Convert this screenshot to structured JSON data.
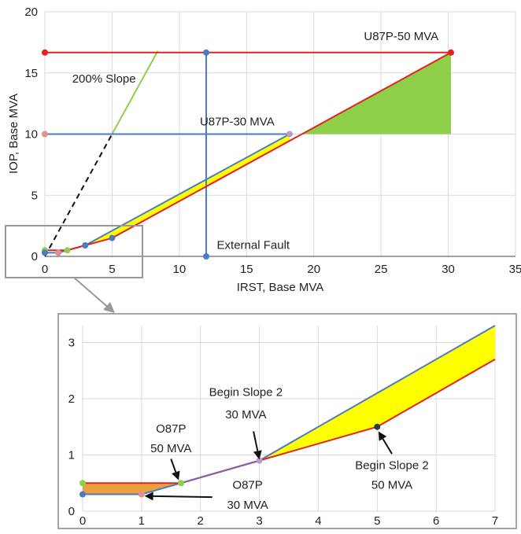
{
  "chart_data": [
    {
      "type": "line",
      "xlabel": "IRST, Base MVA",
      "ylabel": "IOP, Base MVA",
      "xlim": [
        0,
        35
      ],
      "ylim": [
        0,
        20
      ],
      "xticks": [
        "0",
        "5",
        "10",
        "15",
        "20",
        "25",
        "30",
        "35"
      ],
      "yticks": [
        "0",
        "5",
        "10",
        "15",
        "20"
      ],
      "grid": true,
      "series": [
        {
          "key": "red_30",
          "color": "#e8201e",
          "x": [
            0,
            1,
            1.67,
            5,
            30.2
          ],
          "y": [
            0.5,
            0.5,
            0.5,
            1.5,
            16.67
          ]
        },
        {
          "key": "blue_30",
          "color": "#4a7bc4",
          "x": [
            0,
            1,
            3,
            18.2
          ],
          "y": [
            0.3,
            0.3,
            0.9,
            10
          ]
        },
        {
          "key": "u50_line",
          "color": "#e8201e",
          "x": [
            0,
            30.2
          ],
          "y": [
            16.67,
            16.67
          ]
        },
        {
          "key": "u30_line",
          "color": "#4a7bc4",
          "x": [
            0,
            18.2
          ],
          "y": [
            10,
            10
          ]
        },
        {
          "key": "ext_fault",
          "color": "#4a7bc4",
          "x": [
            12,
            12
          ],
          "y": [
            0,
            16.67
          ]
        },
        {
          "key": "slope200",
          "color": "#8ecf4a",
          "x": [
            5,
            8.4
          ],
          "y": [
            10,
            16.8
          ]
        },
        {
          "key": "slope_dashed",
          "color": "#111111",
          "x": [
            0,
            5
          ],
          "y": [
            0,
            10
          ]
        }
      ],
      "fills": [
        {
          "key": "yellow",
          "color": "#ffff00",
          "upper": "blue",
          "lower": "red",
          "x_range": [
            3,
            18.2
          ]
        },
        {
          "key": "green",
          "color": "#8ecf4a",
          "polygon_x": [
            19.2,
            30.2,
            30.2
          ],
          "polygon_y": [
            10,
            10,
            16.67
          ]
        }
      ],
      "points": [
        {
          "x": 0,
          "y": 16.67,
          "color": "#e8201e"
        },
        {
          "x": 30.2,
          "y": 16.67,
          "color": "#e8201e"
        },
        {
          "x": 12,
          "y": 16.67,
          "color": "#4a7bc4"
        },
        {
          "x": 12,
          "y": 0,
          "color": "#4a7bc4"
        },
        {
          "x": 0,
          "y": 10,
          "color": "#e09090"
        },
        {
          "x": 18.2,
          "y": 10,
          "color": "#b89ad0"
        },
        {
          "x": 0,
          "y": 0.5,
          "color": "#8ecf4a"
        },
        {
          "x": 0,
          "y": 0.3,
          "color": "#4a7bc4"
        },
        {
          "x": 1,
          "y": 0.3,
          "color": "#e09090"
        },
        {
          "x": 1.67,
          "y": 0.5,
          "color": "#8ecf4a"
        },
        {
          "x": 3,
          "y": 0.9,
          "color": "#4a7bc4"
        },
        {
          "x": 5,
          "y": 1.5,
          "color": "#4a7bc4"
        }
      ],
      "annotations": [
        {
          "text": "U87P-50 MVA",
          "x": 26.5,
          "y": 17.7
        },
        {
          "text": "200% Slope",
          "x": 4.4,
          "y": 14.2
        },
        {
          "text": "U87P-30 MVA",
          "x": 14.3,
          "y": 10.7
        },
        {
          "text": "External Fault",
          "x": 15.5,
          "y": 0.6
        }
      ]
    },
    {
      "type": "line",
      "xlim": [
        0,
        7
      ],
      "ylim": [
        0,
        3.3
      ],
      "xticks": [
        "0",
        "1",
        "2",
        "3",
        "4",
        "5",
        "6",
        "7"
      ],
      "yticks": [
        "0",
        "1",
        "2",
        "3"
      ],
      "grid": true,
      "series": [
        {
          "key": "red_50",
          "color": "#e8201e",
          "x": [
            0,
            1,
            1.67,
            3,
            5,
            7
          ],
          "y": [
            0.5,
            0.5,
            0.5,
            0.9,
            1.5,
            2.7
          ]
        },
        {
          "key": "blue_30",
          "color": "#4a7bc4",
          "x": [
            0,
            1,
            1.67,
            3,
            7
          ],
          "y": [
            0.3,
            0.3,
            0.5,
            0.9,
            3.3
          ]
        },
        {
          "key": "purple_ov",
          "color": "#8a5fb0",
          "x": [
            1.67,
            3
          ],
          "y": [
            0.5,
            0.9
          ]
        }
      ],
      "fills": [
        {
          "key": "orange",
          "color": "#e8a040",
          "polygon_x": [
            0,
            1.67,
            1,
            0
          ],
          "polygon_y": [
            0.5,
            0.5,
            0.3,
            0.3
          ]
        },
        {
          "key": "yellow",
          "color": "#ffff00",
          "polygon_x": [
            3,
            7,
            7,
            5
          ],
          "polygon_y": [
            0.9,
            3.3,
            2.7,
            1.5
          ]
        }
      ],
      "points": [
        {
          "x": 0,
          "y": 0.5,
          "color": "#8ecf4a"
        },
        {
          "x": 0,
          "y": 0.3,
          "color": "#4a7bc4"
        },
        {
          "x": 1,
          "y": 0.3,
          "color": "#e09090"
        },
        {
          "x": 1.67,
          "y": 0.5,
          "color": "#8ecf4a"
        },
        {
          "x": 3,
          "y": 0.9,
          "color": "#b89ad0"
        },
        {
          "x": 5,
          "y": 1.5,
          "color": "#2a3a4a"
        }
      ],
      "annotations": [
        {
          "text": "Begin Slope 2",
          "x": 2.77,
          "y": 2.05,
          "anchor": "middle"
        },
        {
          "text": "30 MVA",
          "x": 2.77,
          "y": 1.65,
          "anchor": "middle"
        },
        {
          "text": "O87P",
          "x": 1.5,
          "y": 1.4,
          "anchor": "middle"
        },
        {
          "text": "50 MVA",
          "x": 1.5,
          "y": 1.05,
          "anchor": "middle"
        },
        {
          "text": "O87P",
          "x": 2.8,
          "y": 0.4,
          "anchor": "middle"
        },
        {
          "text": "30 MVA",
          "x": 2.8,
          "y": 0.04,
          "anchor": "middle"
        },
        {
          "text": "Begin Slope 2",
          "x": 5.25,
          "y": 0.75,
          "anchor": "middle"
        },
        {
          "text": "50 MVA",
          "x": 5.25,
          "y": 0.4,
          "anchor": "middle"
        }
      ],
      "arrows": [
        {
          "from_x": 2.9,
          "from_y": 1.42,
          "to_x": 3.0,
          "to_y": 0.92
        },
        {
          "from_x": 1.5,
          "from_y": 0.93,
          "to_x": 1.63,
          "to_y": 0.55
        },
        {
          "from_x": 2.2,
          "from_y": 0.25,
          "to_x": 1.05,
          "to_y": 0.27
        },
        {
          "from_x": 5.25,
          "from_y": 1.02,
          "to_x": 5.02,
          "to_y": 1.42
        }
      ]
    }
  ]
}
